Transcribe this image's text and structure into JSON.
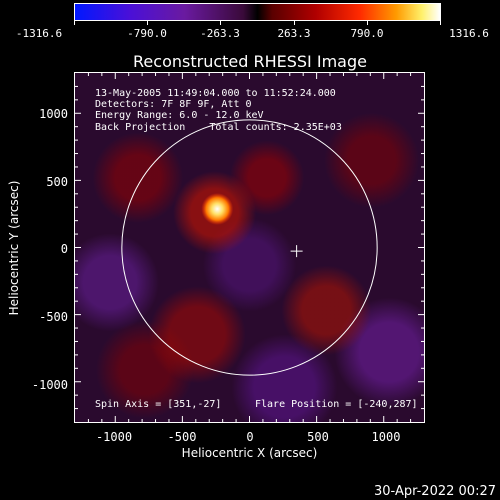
{
  "colorbar": {
    "ticks": [
      "-1316.6",
      "-790.0",
      "-263.3",
      "263.3",
      "790.0",
      "1316.6"
    ]
  },
  "plot": {
    "title": "Reconstructed RHESSI Image",
    "info": {
      "time": "13-May-2005 11:49:04.000 to 11:52:24.000",
      "detectors": "Detectors: 7F 8F 9F, Att 0",
      "energy": "Energy Range: 6.0 - 12.0 keV",
      "method_counts": "Back Projection    Total counts: 2.35E+03"
    },
    "footer": {
      "spin_axis": "Spin Axis = [351,-27]",
      "flare_position": "Flare Position = [-240,287]"
    },
    "x_axis": {
      "title": "Heliocentric X (arcsec)",
      "ticks": [
        "-1000",
        "-500",
        "0",
        "500",
        "1000"
      ]
    },
    "y_axis": {
      "title": "Heliocentric Y (arcsec)",
      "ticks": [
        "1000",
        "500",
        "0",
        "-500",
        "-1000"
      ]
    },
    "spin_axis_value": [
      351,
      -27
    ],
    "flare_position_value": [
      -240,
      287
    ],
    "solar_disk_radius_arcsec": 951,
    "x_range": [
      -1300,
      1300
    ],
    "y_range": [
      -1300,
      1300
    ],
    "colors": {
      "disk_outline": "#ffffff",
      "source_core": "#ffffff",
      "source_glow": "#ffcc00"
    }
  },
  "timestamp": "30-Apr-2022 00:27"
}
